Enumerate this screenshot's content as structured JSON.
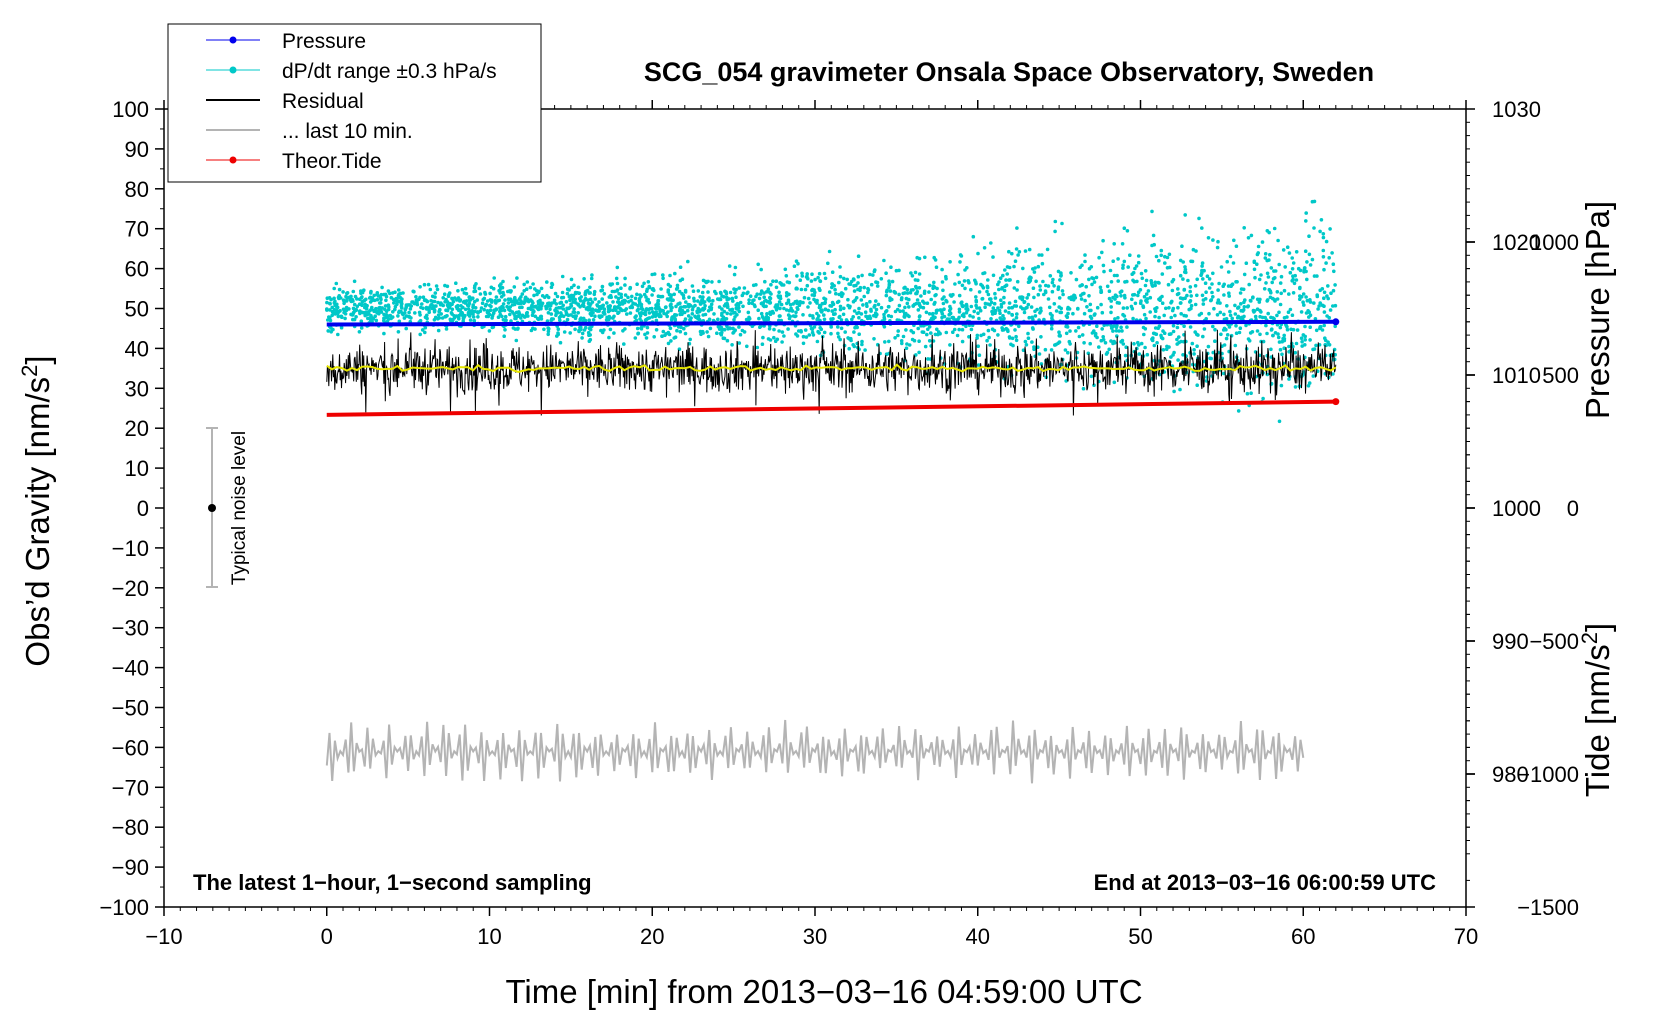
{
  "chart_data": {
    "type": "line",
    "title": "SCG_054 gravimeter Onsala Space Observatory, Sweden",
    "xlabel": "Time [min] from 2013−03−16 04:59:00 UTC",
    "ylabel_left_main": "Obs’d Gravity [nm/s",
    "ylabel_left_sup": "2",
    "ylabel_left_end": "]",
    "ylabel_right_top": "Pressure [hPa]",
    "ylabel_right_bottom_main": "Tide [nm/s",
    "ylabel_right_bottom_sup": "2",
    "ylabel_right_bottom_end": "]",
    "xlim": [
      -10,
      70
    ],
    "ylim": [
      -100,
      100
    ],
    "pressure_ylim": [
      970,
      1030
    ],
    "tide_ylim": [
      -1500,
      1500
    ],
    "x_ticks": [
      "−10",
      "0",
      "10",
      "20",
      "30",
      "40",
      "50",
      "60",
      "70"
    ],
    "y_ticks": [
      "100",
      "90",
      "80",
      "70",
      "60",
      "50",
      "40",
      "30",
      "20",
      "10",
      "0",
      "−10",
      "−20",
      "−30",
      "−40",
      "−50",
      "−60",
      "−70",
      "−80",
      "−90",
      "−100"
    ],
    "pressure_ticks": [
      "1030",
      "1020",
      "1010",
      "1000",
      "990",
      "980"
    ],
    "tide_ticks": [
      "1000",
      "500",
      "0",
      "−500",
      "−1000",
      "−1500"
    ],
    "legend_position": "top-left",
    "series": [
      {
        "name": "Pressure",
        "color": "#0000ee",
        "style": "line-dots",
        "axis": "pressure",
        "x_range": [
          0,
          62
        ],
        "values": [
          1013.8,
          1014.0
        ]
      },
      {
        "name": "dP/dt range ±0.3 hPa/s",
        "color": "#00c8c8",
        "style": "dots",
        "axis": "gravity",
        "x_range": [
          0,
          62
        ],
        "center": 50,
        "spread_start": 5,
        "spread_end": 22
      },
      {
        "name": "Residual",
        "color": "#000000",
        "style": "line",
        "axis": "gravity",
        "x_range": [
          0,
          62
        ],
        "center": 35,
        "spread": 5
      },
      {
        "name": "... last 10 min.",
        "color": "#b4b4b4",
        "style": "line",
        "axis": "gravity",
        "x_range": [
          0,
          60
        ],
        "center": -61,
        "spread": 8
      },
      {
        "name": "Theor.Tide",
        "color": "#ee0000",
        "style": "line-dots",
        "axis": "tide",
        "x_range": [
          0,
          62
        ],
        "values": [
          350,
          400
        ]
      }
    ],
    "smoothed_residual": {
      "color": "#e6e600",
      "value": 35
    },
    "noise_bar": {
      "x": -7,
      "center": 0,
      "range": [
        -20,
        20
      ],
      "label": "Typical noise level"
    },
    "annotations": {
      "bottom_left": "The latest 1−hour, 1−second sampling",
      "bottom_right": "End at 2013−03−16 06:00:59 UTC"
    }
  }
}
